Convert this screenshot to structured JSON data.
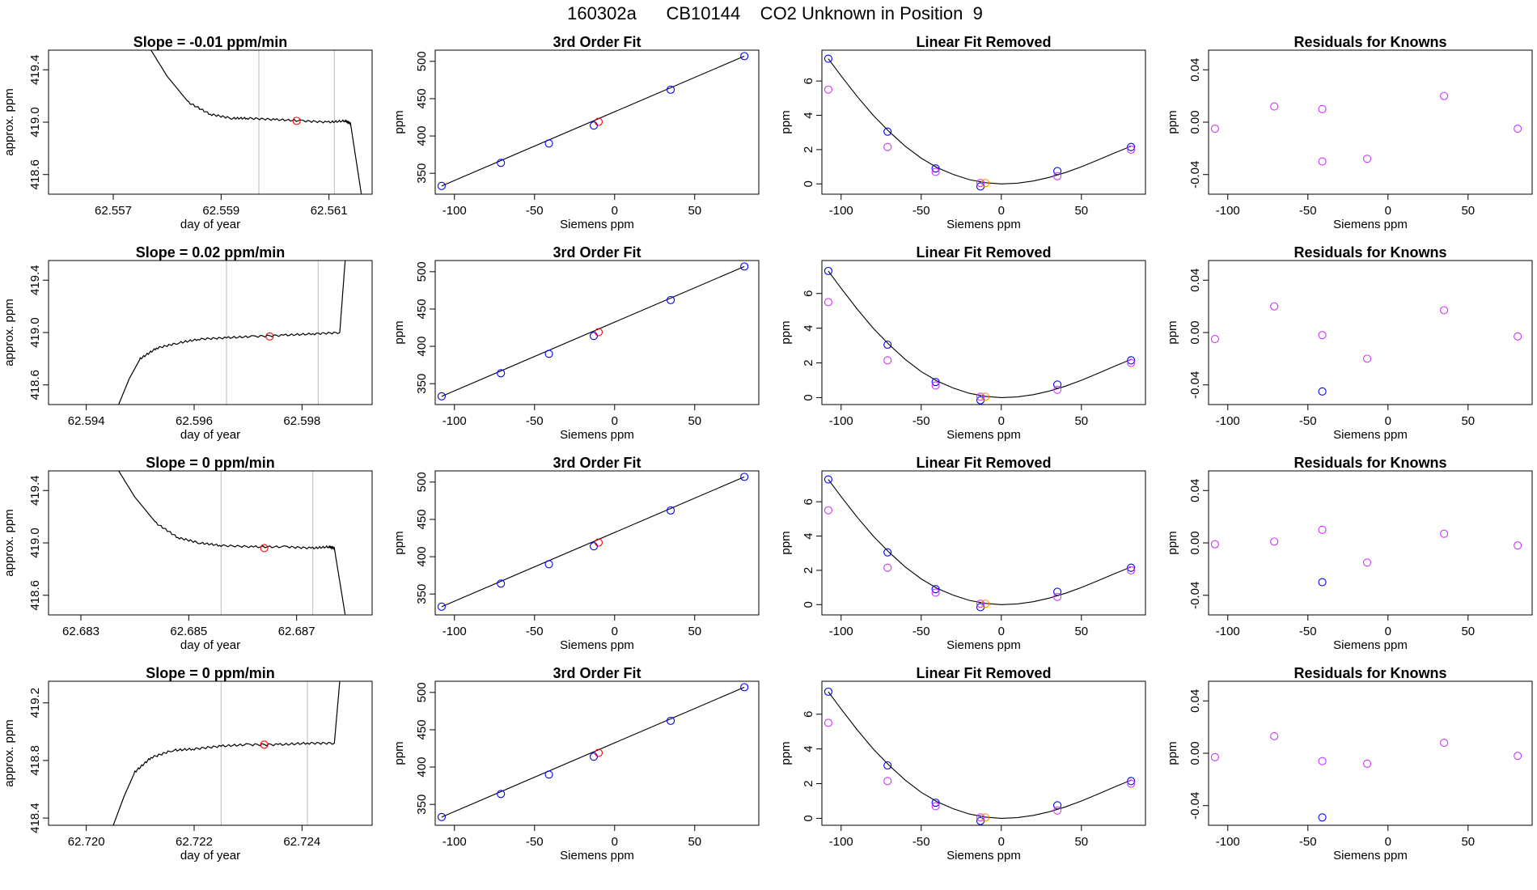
{
  "suptitle": "160302a      CB10144    CO2 Unknown in Position  9",
  "colors": {
    "blue": "#0000ff",
    "violet": "#cc33ff",
    "red": "#ff0000",
    "orange": "#ff8c00",
    "line": "#000000",
    "vline": "#bbbbbb"
  },
  "chart_data": [
    {
      "type": "line",
      "panel": "time-1",
      "title": "Slope =  -0.01  ppm/min",
      "xlabel": "day of year",
      "ylabel": "approx. ppm",
      "xlim": [
        62.5558,
        62.5618
      ],
      "ylim": [
        418.45,
        419.55
      ],
      "xticks": [
        "62.557",
        "62.559",
        "62.561"
      ],
      "yticks": [
        "418.6",
        "419.0",
        "419.4"
      ],
      "vlines": [
        62.5597,
        62.5611
      ],
      "series": [
        {
          "x": [
            62.5577,
            62.558,
            62.5584,
            62.5588,
            62.5592,
            62.5595,
            62.56,
            62.5605,
            62.561,
            62.5613,
            62.5614,
            62.5616
          ],
          "y": [
            419.55,
            419.35,
            419.15,
            419.06,
            419.03,
            419.03,
            419.02,
            419.01,
            419.0,
            419.01,
            418.99,
            418.45
          ]
        }
      ],
      "marker": {
        "x": 62.5604,
        "y": 419.01
      }
    },
    {
      "type": "line",
      "panel": "time-2",
      "title": "Slope =  0.02  ppm/min",
      "xlabel": "day of year",
      "ylabel": "approx. ppm",
      "xlim": [
        62.5933,
        62.5993
      ],
      "ylim": [
        418.45,
        419.55
      ],
      "xticks": [
        "62.594",
        "62.596",
        "62.598"
      ],
      "yticks": [
        "418.6",
        "419.0",
        "419.4"
      ],
      "vlines": [
        62.5966,
        62.5983
      ],
      "series": [
        {
          "x": [
            62.5946,
            62.5948,
            62.595,
            62.5953,
            62.5957,
            62.5961,
            62.5966,
            62.5971,
            62.5977,
            62.5982,
            62.5987,
            62.5988
          ],
          "y": [
            418.45,
            418.65,
            418.8,
            418.88,
            418.92,
            418.95,
            418.96,
            418.97,
            418.98,
            418.99,
            419.0,
            419.55
          ]
        }
      ],
      "marker": {
        "x": 62.5974,
        "y": 418.97
      }
    },
    {
      "type": "line",
      "panel": "time-3",
      "title": "Slope =  0  ppm/min",
      "xlabel": "day of year",
      "ylabel": "approx. ppm",
      "xlim": [
        62.6824,
        62.6884
      ],
      "ylim": [
        418.45,
        419.55
      ],
      "xticks": [
        "62.683",
        "62.685",
        "62.687"
      ],
      "yticks": [
        "418.6",
        "419.0",
        "419.4"
      ],
      "vlines": [
        62.6856,
        62.6873
      ],
      "series": [
        {
          "x": [
            62.6837,
            62.684,
            62.6844,
            62.6848,
            62.6852,
            62.6856,
            62.6862,
            62.6868,
            62.6873,
            62.6876,
            62.6877,
            62.6879
          ],
          "y": [
            419.55,
            419.35,
            419.15,
            419.04,
            419.0,
            418.98,
            418.97,
            418.97,
            418.96,
            418.97,
            418.96,
            418.45
          ]
        }
      ],
      "marker": {
        "x": 62.6864,
        "y": 418.96
      }
    },
    {
      "type": "line",
      "panel": "time-4",
      "title": "Slope =  0  ppm/min",
      "xlabel": "day of year",
      "ylabel": "approx. ppm",
      "xlim": [
        62.7193,
        62.7253
      ],
      "ylim": [
        418.35,
        419.35
      ],
      "xticks": [
        "62.720",
        "62.722",
        "62.724"
      ],
      "yticks": [
        "418.4",
        "418.8",
        "419.2"
      ],
      "vlines": [
        62.7225,
        62.7241
      ],
      "series": [
        {
          "x": [
            62.7205,
            62.7207,
            62.7209,
            62.7212,
            62.7216,
            62.722,
            62.7225,
            62.723,
            62.7236,
            62.7241,
            62.7246,
            62.7247
          ],
          "y": [
            418.35,
            418.55,
            418.72,
            418.82,
            418.87,
            418.88,
            418.9,
            418.91,
            418.91,
            418.92,
            418.92,
            419.35
          ]
        }
      ],
      "marker": {
        "x": 62.7233,
        "y": 418.91
      }
    },
    {
      "type": "scatter",
      "panel": "fit",
      "title": "3rd Order Fit",
      "xlabel": "Siemens ppm",
      "ylabel": "ppm",
      "xlim": [
        -112,
        90
      ],
      "ylim": [
        322,
        515
      ],
      "xticks": [
        "-100",
        "-50",
        "0",
        "50"
      ],
      "yticks": [
        "350",
        "400",
        "450",
        "500"
      ],
      "fit_line": {
        "x": [
          -108,
          81
        ],
        "y": [
          333,
          507
        ]
      },
      "knowns": {
        "x": [
          -108,
          -71,
          -41,
          -13,
          35,
          81
        ],
        "y": [
          333,
          364,
          390,
          414,
          462,
          507
        ]
      },
      "unknown": {
        "x": -10,
        "y": 419
      }
    },
    {
      "type": "scatter",
      "panel": "linfit-1",
      "title": "Linear Fit Removed",
      "xlabel": "Siemens ppm",
      "ylabel": "ppm",
      "xlim": [
        -112,
        90
      ],
      "ylim": [
        -0.6,
        7.8
      ],
      "xticks": [
        "-100",
        "-50",
        "0",
        "50"
      ],
      "yticks": [
        "0",
        "2",
        "4",
        "6"
      ],
      "curve_x": [
        -108,
        -100,
        -90,
        -80,
        -70,
        -60,
        -50,
        -40,
        -30,
        -20,
        -10,
        0,
        10,
        20,
        30,
        40,
        50,
        60,
        70,
        81
      ],
      "curve_y": [
        7.3,
        6.3,
        5.1,
        4.0,
        3.05,
        2.2,
        1.5,
        0.95,
        0.55,
        0.25,
        0.07,
        0.0,
        0.04,
        0.17,
        0.38,
        0.66,
        1.0,
        1.38,
        1.78,
        2.2
      ],
      "knowns_blue": {
        "x": [
          -108,
          -71,
          -41,
          -13,
          35,
          81
        ],
        "y": [
          7.3,
          3.05,
          0.9,
          -0.15,
          0.75,
          2.15
        ]
      },
      "knowns_violet": {
        "x": [
          -108,
          -71,
          -41,
          -13,
          35,
          81
        ],
        "y": [
          5.5,
          2.15,
          0.7,
          0.05,
          0.45,
          2.0
        ]
      },
      "unknown": {
        "x": -10,
        "y": 0.05
      }
    },
    {
      "type": "scatter",
      "panel": "linfit-2",
      "title": "Linear Fit Removed",
      "xlabel": "Siemens ppm",
      "ylabel": "ppm",
      "xlim": [
        -112,
        90
      ],
      "ylim": [
        -0.4,
        7.9
      ],
      "xticks": [
        "-100",
        "-50",
        "0",
        "50"
      ],
      "yticks": [
        "0",
        "2",
        "4",
        "6"
      ],
      "curve_x": [
        -108,
        -100,
        -90,
        -80,
        -70,
        -60,
        -50,
        -40,
        -30,
        -20,
        -10,
        0,
        10,
        20,
        30,
        40,
        50,
        60,
        70,
        81
      ],
      "curve_y": [
        7.3,
        6.3,
        5.1,
        4.0,
        3.05,
        2.2,
        1.5,
        0.95,
        0.55,
        0.25,
        0.07,
        0.0,
        0.04,
        0.17,
        0.38,
        0.66,
        1.0,
        1.38,
        1.78,
        2.2
      ],
      "knowns_blue": {
        "x": [
          -108,
          -71,
          -41,
          -13,
          35,
          81
        ],
        "y": [
          7.3,
          3.05,
          0.9,
          -0.15,
          0.75,
          2.15
        ]
      },
      "knowns_violet": {
        "x": [
          -108,
          -71,
          -41,
          -13,
          35,
          81
        ],
        "y": [
          5.5,
          2.15,
          0.7,
          0.05,
          0.45,
          2.0
        ]
      },
      "unknown": {
        "x": -10,
        "y": 0.05
      }
    },
    {
      "type": "scatter",
      "panel": "resid-1",
      "title": "Residuals for Knowns",
      "xlabel": "Siemens ppm",
      "ylabel": "ppm",
      "xlim": [
        -112,
        90
      ],
      "ylim": [
        -0.055,
        0.055
      ],
      "xticks": [
        "-100",
        "-50",
        "0",
        "50"
      ],
      "yticks": [
        "-0.04",
        "0.00",
        "0.04"
      ],
      "points": [
        {
          "x": -108,
          "y": -0.005,
          "c": "violet"
        },
        {
          "x": -71,
          "y": 0.012,
          "c": "violet"
        },
        {
          "x": -41,
          "y": 0.01,
          "c": "violet"
        },
        {
          "x": -41,
          "y": -0.03,
          "c": "violet"
        },
        {
          "x": -13,
          "y": -0.028,
          "c": "violet"
        },
        {
          "x": 35,
          "y": 0.02,
          "c": "violet"
        },
        {
          "x": 81,
          "y": -0.005,
          "c": "violet"
        }
      ]
    },
    {
      "type": "scatter",
      "panel": "resid-2",
      "title": "Residuals for Knowns",
      "xlabel": "Siemens ppm",
      "ylabel": "ppm",
      "xlim": [
        -112,
        90
      ],
      "ylim": [
        -0.055,
        0.055
      ],
      "xticks": [
        "-100",
        "-50",
        "0",
        "50"
      ],
      "yticks": [
        "-0.04",
        "0.00",
        "0.04"
      ],
      "points": [
        {
          "x": -108,
          "y": -0.005,
          "c": "violet"
        },
        {
          "x": -71,
          "y": 0.02,
          "c": "violet"
        },
        {
          "x": -41,
          "y": -0.002,
          "c": "violet"
        },
        {
          "x": -41,
          "y": -0.045,
          "c": "blue"
        },
        {
          "x": -13,
          "y": -0.02,
          "c": "violet"
        },
        {
          "x": 35,
          "y": 0.017,
          "c": "violet"
        },
        {
          "x": 81,
          "y": -0.003,
          "c": "violet"
        }
      ]
    },
    {
      "type": "scatter",
      "panel": "resid-3",
      "title": "Residuals for Knowns",
      "xlabel": "Siemens ppm",
      "ylabel": "ppm",
      "xlim": [
        -112,
        90
      ],
      "ylim": [
        -0.055,
        0.055
      ],
      "xticks": [
        "-100",
        "-50",
        "0",
        "50"
      ],
      "yticks": [
        "-0.04",
        "0.00",
        "0.04"
      ],
      "points": [
        {
          "x": -108,
          "y": -0.001,
          "c": "violet"
        },
        {
          "x": -71,
          "y": 0.001,
          "c": "violet"
        },
        {
          "x": -41,
          "y": 0.01,
          "c": "violet"
        },
        {
          "x": -41,
          "y": -0.03,
          "c": "blue"
        },
        {
          "x": -13,
          "y": -0.015,
          "c": "violet"
        },
        {
          "x": 35,
          "y": 0.007,
          "c": "violet"
        },
        {
          "x": 81,
          "y": -0.002,
          "c": "violet"
        }
      ]
    },
    {
      "type": "scatter",
      "panel": "resid-4",
      "title": "Residuals for Knowns",
      "xlabel": "Siemens ppm",
      "ylabel": "ppm",
      "xlim": [
        -112,
        90
      ],
      "ylim": [
        -0.055,
        0.055
      ],
      "xticks": [
        "-100",
        "-50",
        "0",
        "50"
      ],
      "yticks": [
        "-0.04",
        "0.00",
        "0.04"
      ],
      "points": [
        {
          "x": -108,
          "y": -0.003,
          "c": "violet"
        },
        {
          "x": -71,
          "y": 0.013,
          "c": "violet"
        },
        {
          "x": -41,
          "y": -0.006,
          "c": "violet"
        },
        {
          "x": -41,
          "y": -0.049,
          "c": "blue"
        },
        {
          "x": -13,
          "y": -0.008,
          "c": "violet"
        },
        {
          "x": 35,
          "y": 0.008,
          "c": "violet"
        },
        {
          "x": 81,
          "y": -0.002,
          "c": "violet"
        }
      ]
    }
  ]
}
